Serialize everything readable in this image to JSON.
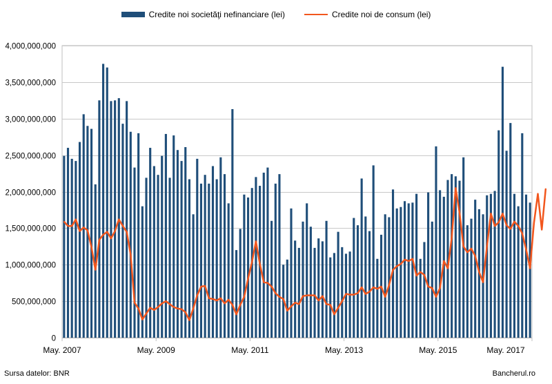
{
  "chart_data": {
    "type": "bar",
    "title": "",
    "xlabel": "",
    "ylabel": "",
    "ylim": [
      0,
      4000000000
    ],
    "grid": true,
    "legend_position": "top",
    "y_ticks": [
      0,
      500000000,
      1000000000,
      1500000000,
      2000000000,
      2500000000,
      3000000000,
      3500000000,
      4000000000
    ],
    "y_tick_labels": [
      "0",
      "500,000,000",
      "1,000,000,000",
      "1,500,000,000",
      "2,000,000,000",
      "2,500,000,000",
      "3,000,000,000",
      "3,500,000,000",
      "4,000,000,000"
    ],
    "x_tick_labels": [
      {
        "index": 0,
        "label": "May. 2007"
      },
      {
        "index": 24,
        "label": "May. 2009"
      },
      {
        "index": 48,
        "label": "May. 2011"
      },
      {
        "index": 72,
        "label": "May. 2013"
      },
      {
        "index": 96,
        "label": "May. 2015"
      },
      {
        "index": 120,
        "label": "May. 2017"
      }
    ],
    "x_start": "2007-05",
    "series": [
      {
        "name": "Credite noi societăţi nefinanciare (lei)",
        "kind": "bar",
        "color": "#1f4e79",
        "values": [
          2490000000,
          2600000000,
          2450000000,
          2420000000,
          2680000000,
          3060000000,
          2900000000,
          2860000000,
          2100000000,
          3250000000,
          3750000000,
          3700000000,
          3240000000,
          3250000000,
          3280000000,
          2930000000,
          3240000000,
          2820000000,
          2330000000,
          2800000000,
          1800000000,
          2190000000,
          2600000000,
          2350000000,
          2230000000,
          2490000000,
          2790000000,
          2190000000,
          2770000000,
          2570000000,
          2420000000,
          2610000000,
          2170000000,
          1690000000,
          2450000000,
          2110000000,
          2230000000,
          2110000000,
          2350000000,
          2170000000,
          2470000000,
          2240000000,
          1840000000,
          3130000000,
          1200000000,
          1490000000,
          1960000000,
          1920000000,
          2050000000,
          2200000000,
          2080000000,
          2260000000,
          2330000000,
          1600000000,
          2110000000,
          2240000000,
          1000000000,
          1070000000,
          1770000000,
          1330000000,
          1230000000,
          1590000000,
          1840000000,
          1520000000,
          1230000000,
          1360000000,
          1320000000,
          1600000000,
          1100000000,
          1160000000,
          1450000000,
          1240000000,
          1150000000,
          1180000000,
          1640000000,
          1540000000,
          2180000000,
          1660000000,
          1460000000,
          2360000000,
          1080000000,
          1410000000,
          1690000000,
          1650000000,
          2030000000,
          1770000000,
          1790000000,
          1870000000,
          1840000000,
          1850000000,
          1970000000,
          1080000000,
          1310000000,
          1990000000,
          1590000000,
          2620000000,
          2020000000,
          1930000000,
          2160000000,
          2240000000,
          2210000000,
          2150000000,
          2470000000,
          1540000000,
          1630000000,
          1890000000,
          1760000000,
          1690000000,
          1950000000,
          1970000000,
          2010000000,
          2840000000,
          3710000000,
          2560000000,
          2940000000,
          1970000000,
          1800000000,
          2800000000,
          1960000000,
          1850000000
        ]
      },
      {
        "name": "Credite noi de consum (lei)",
        "kind": "line",
        "color": "#f2561d",
        "values": [
          1590000000,
          1530000000,
          1530000000,
          1620000000,
          1460000000,
          1510000000,
          1470000000,
          1240000000,
          930000000,
          1340000000,
          1410000000,
          1450000000,
          1360000000,
          1460000000,
          1620000000,
          1530000000,
          1450000000,
          1140000000,
          480000000,
          400000000,
          250000000,
          330000000,
          410000000,
          380000000,
          420000000,
          470000000,
          500000000,
          460000000,
          420000000,
          400000000,
          390000000,
          350000000,
          240000000,
          400000000,
          580000000,
          700000000,
          710000000,
          540000000,
          530000000,
          510000000,
          540000000,
          470000000,
          520000000,
          450000000,
          320000000,
          450000000,
          560000000,
          810000000,
          1040000000,
          1320000000,
          1010000000,
          760000000,
          750000000,
          700000000,
          610000000,
          560000000,
          530000000,
          370000000,
          430000000,
          480000000,
          460000000,
          570000000,
          580000000,
          580000000,
          580000000,
          510000000,
          570000000,
          460000000,
          450000000,
          320000000,
          410000000,
          500000000,
          600000000,
          590000000,
          590000000,
          610000000,
          690000000,
          600000000,
          630000000,
          690000000,
          670000000,
          700000000,
          560000000,
          720000000,
          930000000,
          980000000,
          1010000000,
          1070000000,
          1050000000,
          1080000000,
          850000000,
          900000000,
          860000000,
          700000000,
          680000000,
          560000000,
          680000000,
          1050000000,
          950000000,
          1370000000,
          2050000000,
          1710000000,
          1250000000,
          1170000000,
          1220000000,
          1120000000,
          900000000,
          760000000,
          1250000000,
          1700000000,
          1530000000,
          1580000000,
          1700000000,
          1540000000,
          1490000000,
          1590000000,
          1530000000,
          1430000000,
          1210000000,
          950000000,
          1570000000,
          1970000000,
          1480000000,
          2040000000
        ]
      }
    ]
  },
  "legend": {
    "bar_label": "Credite noi societăţi nefinanciare (lei)",
    "line_label": "Credite noi de consum (lei)"
  },
  "footer": {
    "source": "Sursa datelor: BNR",
    "brand": "Bancherul.ro"
  }
}
